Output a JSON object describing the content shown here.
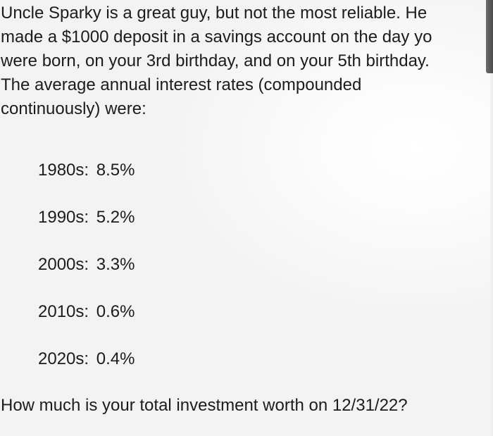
{
  "problem": {
    "intro_lines": [
      "Uncle Sparky is a great guy, but not the most reliable.  He",
      "made a $1000 deposit in a savings account on the day yo",
      "were born, on your 3rd birthday, and on your 5th birthday.",
      "The average annual interest rates (compounded",
      "continuously) were:"
    ],
    "rates": [
      {
        "decade": "1980s:",
        "value": "8.5%"
      },
      {
        "decade": "1990s:",
        "value": "5.2%"
      },
      {
        "decade": "2000s:",
        "value": "3.3%"
      },
      {
        "decade": "2010s:",
        "value": "0.6%"
      },
      {
        "decade": "2020s:",
        "value": "0.4%"
      }
    ],
    "question": "How much is your total investment worth on 12/31/22?"
  }
}
